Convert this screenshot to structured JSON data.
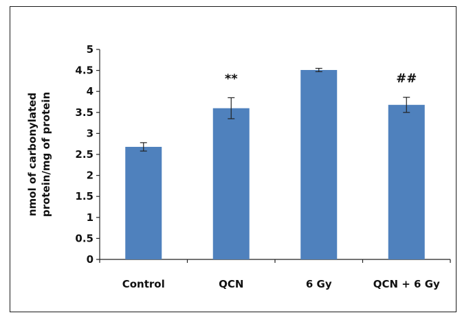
{
  "chart_data": {
    "type": "bar",
    "categories": [
      "Control",
      "QCN",
      "6 Gy",
      "QCN + 6 Gy"
    ],
    "values": [
      2.68,
      3.6,
      4.51,
      3.68
    ],
    "errors": [
      0.1,
      0.25,
      0.04,
      0.18
    ],
    "annotations": [
      "",
      "**",
      "",
      "##"
    ],
    "title": "",
    "xlabel": "",
    "ylabel_lines": [
      "nmol of carbonylated",
      "protein/mg of protein"
    ],
    "ylim": [
      0,
      5
    ],
    "yticks": [
      "0",
      "0.5",
      "1",
      "1.5",
      "2",
      "2.5",
      "3",
      "3.5",
      "4",
      "4.5",
      "5"
    ],
    "bar_color": "#4f81bd",
    "grid": false,
    "legend": "none"
  }
}
